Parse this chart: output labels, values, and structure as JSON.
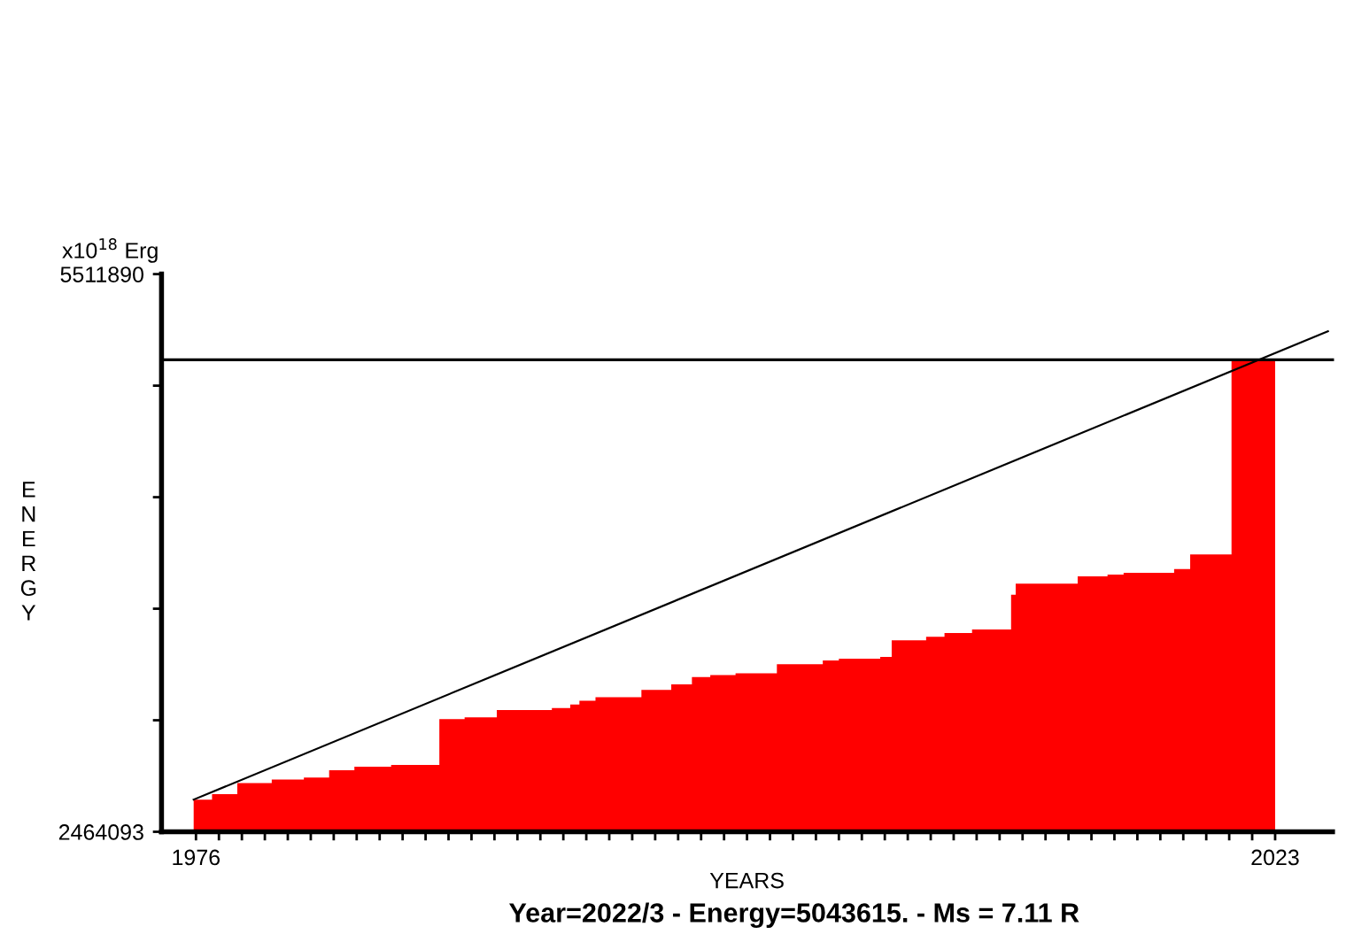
{
  "chart_data": {
    "type": "histogram",
    "xlabel": "YEARS",
    "ylabel": "ENERGY",
    "annotations": [
      "x10$^{18}$ Erg",
      "Year=2022/3 - Energy=5043615. - Ms = 7.11 R"
    ],
    "color": "#ff0000",
    "bins": [
      1975.9,
      1976.7,
      1977.8,
      1979.3,
      1980.7,
      1981.8,
      1982.9,
      1984.5,
      1986.6,
      1987.7,
      1989.1,
      1991.5,
      1992.3,
      1992.7,
      1993.4,
      1995.4,
      1996.7,
      1997.6,
      1998.4,
      1999.5,
      2001.3,
      2003.3,
      2004.0,
      2005.8,
      2006.3,
      2007.8,
      2008.6,
      2009.8,
      2011.5,
      2011.7,
      2014.4,
      2015.7,
      2016.4,
      2018.6,
      2019.3,
      2021.1,
      2023.0
    ],
    "values": [
      2640000,
      2670000,
      2730000,
      2750000,
      2760000,
      2800000,
      2820000,
      2830000,
      3080000,
      3090000,
      3130000,
      3140000,
      3160000,
      3180000,
      3200000,
      3240000,
      3270000,
      3310000,
      3320000,
      3330000,
      3380000,
      3400000,
      3410000,
      3420000,
      3510000,
      3530000,
      3550000,
      3570000,
      3760000,
      3820000,
      3860000,
      3870000,
      3880000,
      3900000,
      3980000,
      5043615
    ],
    "series": [
      {
        "type": "line",
        "color": "#000000",
        "x": [
          1975.9,
          2025.3
        ],
        "values": [
          2640000,
          5200000
        ]
      }
    ],
    "ref_lines": [
      {
        "axis": "y",
        "value": 5043615,
        "color": "#000000"
      }
    ],
    "xlim": [
      1974.5,
      2025.5
    ],
    "xticks": [
      {
        "value": 1976,
        "label": "1976"
      },
      {
        "value": 1977,
        "label": null
      },
      {
        "value": 1978,
        "label": null
      },
      {
        "value": 1979,
        "label": null
      },
      {
        "value": 1980,
        "label": null
      },
      {
        "value": 1981,
        "label": null
      },
      {
        "value": 1982,
        "label": null
      },
      {
        "value": 1983,
        "label": null
      },
      {
        "value": 1984,
        "label": null
      },
      {
        "value": 1985,
        "label": null
      },
      {
        "value": 1986,
        "label": null
      },
      {
        "value": 1987,
        "label": null
      },
      {
        "value": 1988,
        "label": null
      },
      {
        "value": 1989,
        "label": null
      },
      {
        "value": 1990,
        "label": null
      },
      {
        "value": 1991,
        "label": null
      },
      {
        "value": 1992,
        "label": null
      },
      {
        "value": 1993,
        "label": null
      },
      {
        "value": 1994,
        "label": null
      },
      {
        "value": 1995,
        "label": null
      },
      {
        "value": 1996,
        "label": null
      },
      {
        "value": 1997,
        "label": null
      },
      {
        "value": 1998,
        "label": null
      },
      {
        "value": 1999,
        "label": null
      },
      {
        "value": 2000,
        "label": null
      },
      {
        "value": 2001,
        "label": null
      },
      {
        "value": 2002,
        "label": null
      },
      {
        "value": 2003,
        "label": null
      },
      {
        "value": 2004,
        "label": null
      },
      {
        "value": 2005,
        "label": null
      },
      {
        "value": 2006,
        "label": null
      },
      {
        "value": 2007,
        "label": null
      },
      {
        "value": 2008,
        "label": null
      },
      {
        "value": 2009,
        "label": null
      },
      {
        "value": 2010,
        "label": null
      },
      {
        "value": 2011,
        "label": null
      },
      {
        "value": 2012,
        "label": null
      },
      {
        "value": 2013,
        "label": null
      },
      {
        "value": 2014,
        "label": null
      },
      {
        "value": 2015,
        "label": null
      },
      {
        "value": 2016,
        "label": null
      },
      {
        "value": 2017,
        "label": null
      },
      {
        "value": 2018,
        "label": null
      },
      {
        "value": 2019,
        "label": null
      },
      {
        "value": 2020,
        "label": null
      },
      {
        "value": 2021,
        "label": null
      },
      {
        "value": 2022,
        "label": null
      },
      {
        "value": 2023,
        "label": "2023"
      }
    ],
    "ylim": [
      2464093,
      5511890
    ],
    "yticks": [
      2464093,
      {
        "value": 3073652,
        "label": null
      },
      {
        "value": 3683212,
        "label": null
      },
      {
        "value": 4292771,
        "label": null
      },
      {
        "value": 4902331,
        "label": null
      },
      5511890
    ],
    "grid": false,
    "legend": false
  }
}
